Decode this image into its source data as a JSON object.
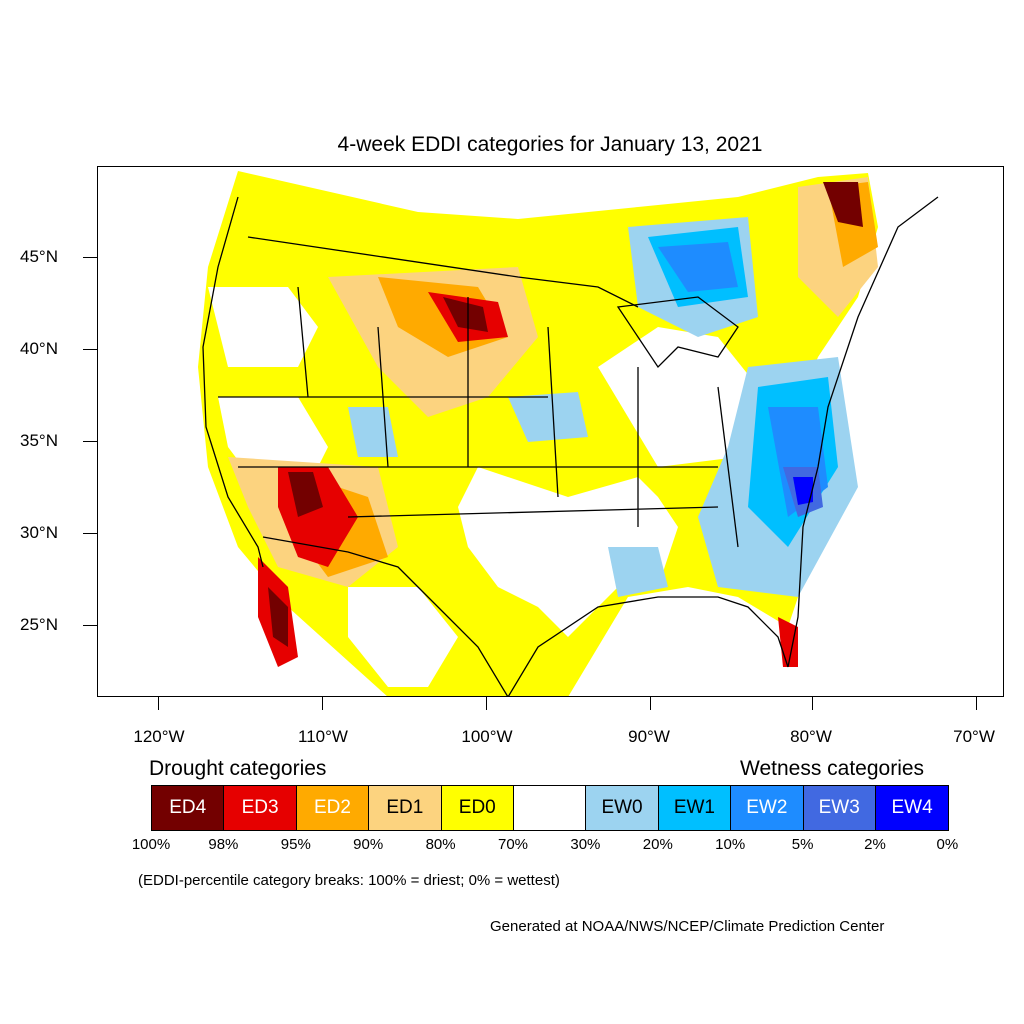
{
  "title": "4-week EDDI categories for January 13, 2021",
  "latitude_labels": [
    "45°N",
    "40°N",
    "35°N",
    "30°N",
    "25°N"
  ],
  "longitude_labels": [
    "120°W",
    "110°W",
    "100°W",
    "90°W",
    "80°W",
    "70°W"
  ],
  "legend": {
    "drought_heading": "Drought categories",
    "wetness_heading": "Wetness categories",
    "categories": [
      {
        "label": "ED4",
        "color": "#730000"
      },
      {
        "label": "ED3",
        "color": "#e60000"
      },
      {
        "label": "ED2",
        "color": "#ffaa00"
      },
      {
        "label": "ED1",
        "color": "#fcd37f"
      },
      {
        "label": "ED0",
        "color": "#ffff00"
      },
      {
        "label": "",
        "color": "#ffffff"
      },
      {
        "label": "EW0",
        "color": "#9cd3f0"
      },
      {
        "label": "EW1",
        "color": "#00bfff"
      },
      {
        "label": "EW2",
        "color": "#1e8cff"
      },
      {
        "label": "EW3",
        "color": "#4169e1"
      },
      {
        "label": "EW4",
        "color": "#0000ff"
      }
    ],
    "percentiles": [
      "100%",
      "98%",
      "95%",
      "90%",
      "80%",
      "70%",
      "30%",
      "20%",
      "10%",
      "5%",
      "2%",
      "0%"
    ]
  },
  "note": "(EDDI-percentile category breaks: 100% = driest; 0% = wettest)",
  "credit": "Generated at NOAA/NWS/NCEP/Climate Prediction Center"
}
